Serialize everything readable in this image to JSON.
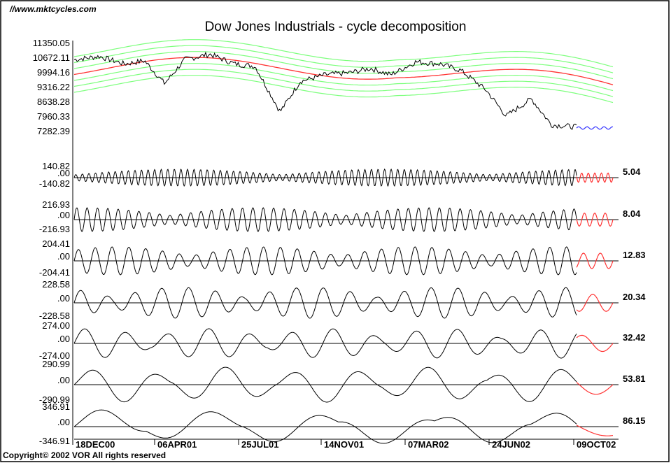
{
  "header": {
    "site": "//www.mktcycles.com",
    "title": "Dow Jones Industrials - cycle decomposition",
    "copyright": "Copyright© 2002 VOR All rights reserved"
  },
  "chart_data": {
    "type": "line",
    "title": "Dow Jones Industrials - cycle decomposition",
    "x_tick_labels": [
      "18DEC00",
      "06APR01",
      "25JUL01",
      "14NOV01",
      "07MAR02",
      "24JUN02",
      "09OCT02"
    ],
    "colors": {
      "price": "#000000",
      "trend": "#ff3333",
      "bands": "#7dff7d",
      "projection": "#ff3333",
      "projection_price": "#3333ff",
      "zero_line": "#000000"
    },
    "price_panel": {
      "y_tick_labels": [
        "11350.05",
        "10672.11",
        "9994.16",
        "9316.22",
        "8638.28",
        "7960.33",
        "7282.39"
      ],
      "ylim": [
        7282.39,
        11350.05
      ],
      "series": [
        {
          "name": "",
          "x": [
            0,
            5,
            10,
            14,
            18,
            22,
            27,
            32,
            36,
            41,
            45,
            50,
            55,
            59,
            63,
            68,
            73,
            77,
            82,
            86,
            91,
            95,
            100
          ],
          "y": [
            10600,
            10750,
            10400,
            10550,
            9500,
            10600,
            10850,
            10400,
            10300,
            8200,
            9600,
            9900,
            10000,
            10200,
            9900,
            10500,
            10400,
            10100,
            9200,
            8000,
            8800,
            7600,
            7500
          ]
        }
      ]
    },
    "cycle_panels": [
      {
        "period": "5.04",
        "top_label": "140.82",
        "zero_label": ".00",
        "bottom_label": "-140.82",
        "amplitude": 140.82
      },
      {
        "period": "8.04",
        "top_label": "216.93",
        "zero_label": ".00",
        "bottom_label": "-216.93",
        "amplitude": 216.93
      },
      {
        "period": "12.83",
        "top_label": "204.41",
        "zero_label": ".00",
        "bottom_label": "-204.41",
        "amplitude": 204.41
      },
      {
        "period": "20.34",
        "top_label": "228.58",
        "zero_label": ".00",
        "bottom_label": "-228.58",
        "amplitude": 228.58
      },
      {
        "period": "32.42",
        "top_label": "274.00",
        "zero_label": ".00",
        "bottom_label": "-274.00",
        "amplitude": 274.0
      },
      {
        "period": "53.81",
        "top_label": "290.99",
        "zero_label": ".00",
        "bottom_label": "-290.99",
        "amplitude": 290.99
      },
      {
        "period": "86.15",
        "top_label": "346.91",
        "zero_label": ".00",
        "bottom_label": "-346.91",
        "amplitude": 346.91
      }
    ],
    "grid": false,
    "legend": "none"
  }
}
